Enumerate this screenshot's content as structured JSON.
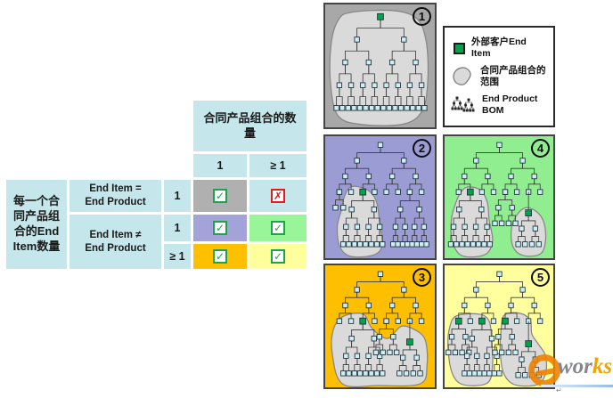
{
  "glyphs": {
    "check": "✓",
    "cross": "✗"
  },
  "colors": {
    "table_header_bg": "#c5e6ea",
    "cell_1_1": "#b0b0b0",
    "cell_1_2": "#c5e6ea",
    "cell_2_1": "#a3a3da",
    "cell_2_2": "#98f698",
    "cell_3_1": "#ffc000",
    "cell_3_2": "#ffff9c",
    "check_green": "#1ea34c",
    "cross_red": "#e21b1b",
    "end_item_green": "#00a24c",
    "node_blue": "#cdeef6",
    "blob_gray": "#dadada",
    "blob_stroke": "#868686"
  },
  "table": {
    "col_group_header": "合同产品组合的数\n量",
    "col_subheaders": [
      "1",
      "≥ 1"
    ],
    "row_group_header": "每一个合\n同产品组\n合的End\nItem数量",
    "conditions": [
      "End Item =\nEnd Product",
      "End Item ≠\nEnd Product"
    ],
    "row_counts": [
      "1",
      "1",
      "≥ 1"
    ],
    "matrix": [
      [
        "check",
        "cross"
      ],
      [
        "check",
        "check"
      ],
      [
        "check",
        "check"
      ]
    ]
  },
  "legend": {
    "items": [
      {
        "icon": "end-item-icon",
        "label": "外部客户End Item"
      },
      {
        "icon": "portfolio-scope-icon",
        "label": "合同产品组合的范围"
      },
      {
        "icon": "bom-icon",
        "label": "End Product BOM"
      }
    ]
  },
  "panels": [
    {
      "number": "1",
      "bg": "#a8a8a8"
    },
    {
      "number": "2",
      "bg": "#9c9cd4"
    },
    {
      "number": "3",
      "bg": "#fdbf00"
    },
    {
      "number": "4",
      "bg": "#90ee90"
    },
    {
      "number": "5",
      "bg": "#ffff9e"
    }
  ],
  "watermark": {
    "text_gray": "wor",
    "text_orange": "ks",
    "caret": "↵"
  }
}
